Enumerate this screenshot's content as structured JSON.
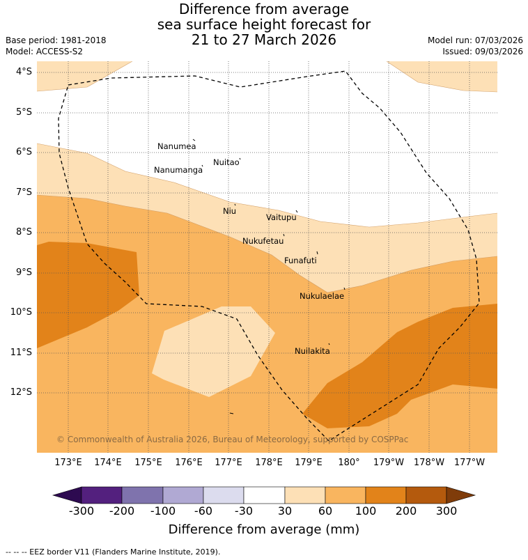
{
  "title": {
    "line1": "Difference from average",
    "line2": "sea surface height forecast for",
    "line3": "21 to 27 March 2026"
  },
  "meta": {
    "base_period": "Base period: 1981-2018",
    "model": "Model: ACCESS-S2",
    "model_run": "Model run: 07/03/2026",
    "issued": "Issued: 09/03/2026"
  },
  "axes": {
    "lat_labels": [
      "4°S",
      "5°S",
      "6°S",
      "7°S",
      "8°S",
      "9°S",
      "10°S",
      "11°S",
      "12°S"
    ],
    "lon_labels": [
      "173°E",
      "174°E",
      "175°E",
      "176°E",
      "177°E",
      "178°E",
      "179°E",
      "180°",
      "179°W",
      "178°W",
      "177°W"
    ]
  },
  "places": [
    {
      "name": "Nanumea"
    },
    {
      "name": "Nuitao"
    },
    {
      "name": "Nanumanga"
    },
    {
      "name": "Niu"
    },
    {
      "name": "Vaitupu"
    },
    {
      "name": "Nukufetau"
    },
    {
      "name": "Funafuti"
    },
    {
      "name": "Nukulaelae"
    },
    {
      "name": "Nuilakita"
    }
  ],
  "copyright": "© Commonwealth of Australia 2026, Bureau of Meteorology, supported by COSPPac",
  "colorbar": {
    "labels": [
      "-300",
      "-200",
      "-100",
      "-60",
      "-30",
      "30",
      "60",
      "100",
      "200",
      "300"
    ],
    "colors": [
      "#2d0a50",
      "#53207e",
      "#7f73ad",
      "#b0a9d3",
      "#dcdcee",
      "#ffffff",
      "#fde0b6",
      "#f9b55f",
      "#e2831a",
      "#b45a0d",
      "#7f3c0a"
    ],
    "title": "Difference from average (mm)"
  },
  "legend": "--  --  -- EEZ border V11 (Flanders Marine Institute, 2019).",
  "colors": {
    "band_30_60": "#fde0b6",
    "band_60_100": "#f9b55f",
    "band_100_200": "#e2831a"
  }
}
